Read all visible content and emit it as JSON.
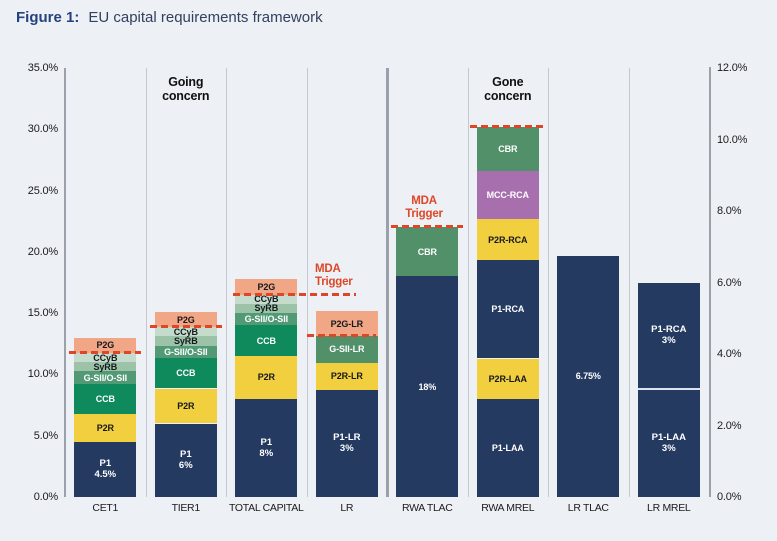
{
  "figure": {
    "label": "Figure 1:",
    "title": "EU capital requirements framework"
  },
  "chart_data": {
    "type": "bar",
    "stacked": true,
    "title": "EU capital requirements framework",
    "left_axis": {
      "min": 0,
      "max": 35,
      "ticks": [
        "0.0%",
        "5.0%",
        "10.0%",
        "15.0%",
        "20.0%",
        "25.0%",
        "30.0%",
        "35.0%"
      ]
    },
    "right_axis": {
      "min": 0,
      "max": 12,
      "ticks": [
        "0.0%",
        "2.0%",
        "4.0%",
        "6.0%",
        "8.0%",
        "10.0%",
        "12.0%"
      ]
    },
    "categories": [
      "CET1",
      "TIER1",
      "TOTAL CAPITAL",
      "LR",
      "RWA TLAC",
      "RWA MREL",
      "LR TLAC",
      "LR MREL"
    ],
    "group_labels": [
      {
        "text": "Going concern",
        "column": 1
      },
      {
        "text": "Gone concern",
        "column": 5
      }
    ],
    "mda_annotations": [
      {
        "text": "MDA Trigger",
        "anchor": "TOTAL CAPITAL"
      },
      {
        "text": "MDA Trigger",
        "anchor": "RWA TLAC"
      }
    ],
    "palette": {
      "navy": "#243a60",
      "yellow": "#f2cf3e",
      "green": "#0f8a5c",
      "midgreen": "#519a75",
      "palegreen": "#9cc3a8",
      "palergreen": "#c5dbcb",
      "salmon": "#f1a685",
      "purple": "#a86fae",
      "sage": "#52906a",
      "red": "#dd4727"
    },
    "bars": [
      {
        "category": "CET1",
        "axis": "left",
        "mda_trigger": 11.75,
        "segments": [
          {
            "label": "P1",
            "sublabel": "4.5%",
            "value": 4.5,
            "color": "navy",
            "text": "light"
          },
          {
            "label": "P2R",
            "value": 2.25,
            "color": "yellow",
            "text": "dark"
          },
          {
            "label": "CCB",
            "value": 2.5,
            "color": "green",
            "text": "light"
          },
          {
            "label": "G-SII/O-SII",
            "value": 1.0,
            "color": "midgreen",
            "text": "light"
          },
          {
            "label": "SyRB",
            "value": 0.75,
            "color": "palegreen",
            "text": "dark"
          },
          {
            "label": "CCyB",
            "value": 0.75,
            "color": "palergreen",
            "text": "dark"
          },
          {
            "label": "P2G",
            "value": 1.25,
            "color": "salmon",
            "text": "dark"
          }
        ]
      },
      {
        "category": "TIER1",
        "axis": "left",
        "mda_trigger": 13.85,
        "segments": [
          {
            "label": "P1",
            "sublabel": "6%",
            "value": 6.0,
            "color": "navy",
            "text": "light"
          },
          {
            "label": "P2R",
            "value": 2.85,
            "color": "yellow",
            "text": "dark"
          },
          {
            "label": "CCB",
            "value": 2.5,
            "color": "green",
            "text": "light"
          },
          {
            "label": "G-SII/O-SII",
            "value": 1.0,
            "color": "midgreen",
            "text": "light"
          },
          {
            "label": "SyRB",
            "value": 0.75,
            "color": "palegreen",
            "text": "dark"
          },
          {
            "label": "CCyB",
            "value": 0.75,
            "color": "palergreen",
            "text": "dark"
          },
          {
            "label": "P2G",
            "value": 1.25,
            "color": "salmon",
            "text": "dark"
          }
        ]
      },
      {
        "category": "TOTAL CAPITAL",
        "axis": "left",
        "mda_trigger": 16.5,
        "segments": [
          {
            "label": "P1",
            "sublabel": "8%",
            "value": 8.0,
            "color": "navy",
            "text": "light"
          },
          {
            "label": "P2R",
            "value": 3.5,
            "color": "yellow",
            "text": "dark"
          },
          {
            "label": "CCB",
            "value": 2.5,
            "color": "green",
            "text": "light"
          },
          {
            "label": "G-SII/O-SII",
            "value": 1.0,
            "color": "midgreen",
            "text": "light"
          },
          {
            "label": "SyRB",
            "value": 0.75,
            "color": "palegreen",
            "text": "dark"
          },
          {
            "label": "CCyB",
            "value": 0.75,
            "color": "palergreen",
            "text": "dark"
          },
          {
            "label": "P2G",
            "value": 1.25,
            "color": "salmon",
            "text": "dark"
          }
        ]
      },
      {
        "category": "LR",
        "axis": "right",
        "mda_trigger": 4.5,
        "segments": [
          {
            "label": "P1-LR",
            "sublabel": "3%",
            "value": 3.0,
            "color": "navy",
            "text": "light"
          },
          {
            "label": "P2R-LR",
            "value": 0.75,
            "color": "yellow",
            "text": "dark"
          },
          {
            "label": "G-SII-LR",
            "value": 0.75,
            "color": "sage",
            "text": "light"
          },
          {
            "label": "P2G-LR",
            "value": 0.7,
            "color": "salmon",
            "text": "dark"
          }
        ]
      },
      {
        "category": "RWA TLAC",
        "axis": "left",
        "mda_trigger": 22.0,
        "segments": [
          {
            "label": "18%",
            "value": 18.0,
            "color": "navy",
            "text": "light"
          },
          {
            "label": "CBR",
            "value": 4.0,
            "color": "sage",
            "text": "light"
          }
        ]
      },
      {
        "category": "RWA MREL",
        "axis": "left",
        "mda_trigger": 30.2,
        "segments": [
          {
            "label": "P1-LAA",
            "value": 8.0,
            "color": "navy",
            "text": "light"
          },
          {
            "label": "P2R-LAA",
            "value": 3.3,
            "color": "yellow",
            "text": "dark"
          },
          {
            "label": "P1-RCA",
            "value": 8.0,
            "color": "navy",
            "text": "light"
          },
          {
            "label": "P2R-RCA",
            "value": 3.4,
            "color": "yellow",
            "text": "dark"
          },
          {
            "label": "MCC-RCA",
            "value": 3.9,
            "color": "purple",
            "text": "light"
          },
          {
            "label": "CBR",
            "value": 3.6,
            "color": "sage",
            "text": "light"
          }
        ]
      },
      {
        "category": "LR TLAC",
        "axis": "right",
        "segments": [
          {
            "label": "6.75%",
            "value": 6.75,
            "color": "navy",
            "text": "light"
          }
        ]
      },
      {
        "category": "LR MREL",
        "axis": "right",
        "segments": [
          {
            "label": "P1-LAA",
            "sublabel": "3%",
            "value": 3.0,
            "color": "navy",
            "text": "light"
          },
          {
            "label": "P1-RCA",
            "sublabel": "3%",
            "value": 3.0,
            "color": "navy",
            "text": "light",
            "divider_below": true
          }
        ]
      }
    ]
  }
}
